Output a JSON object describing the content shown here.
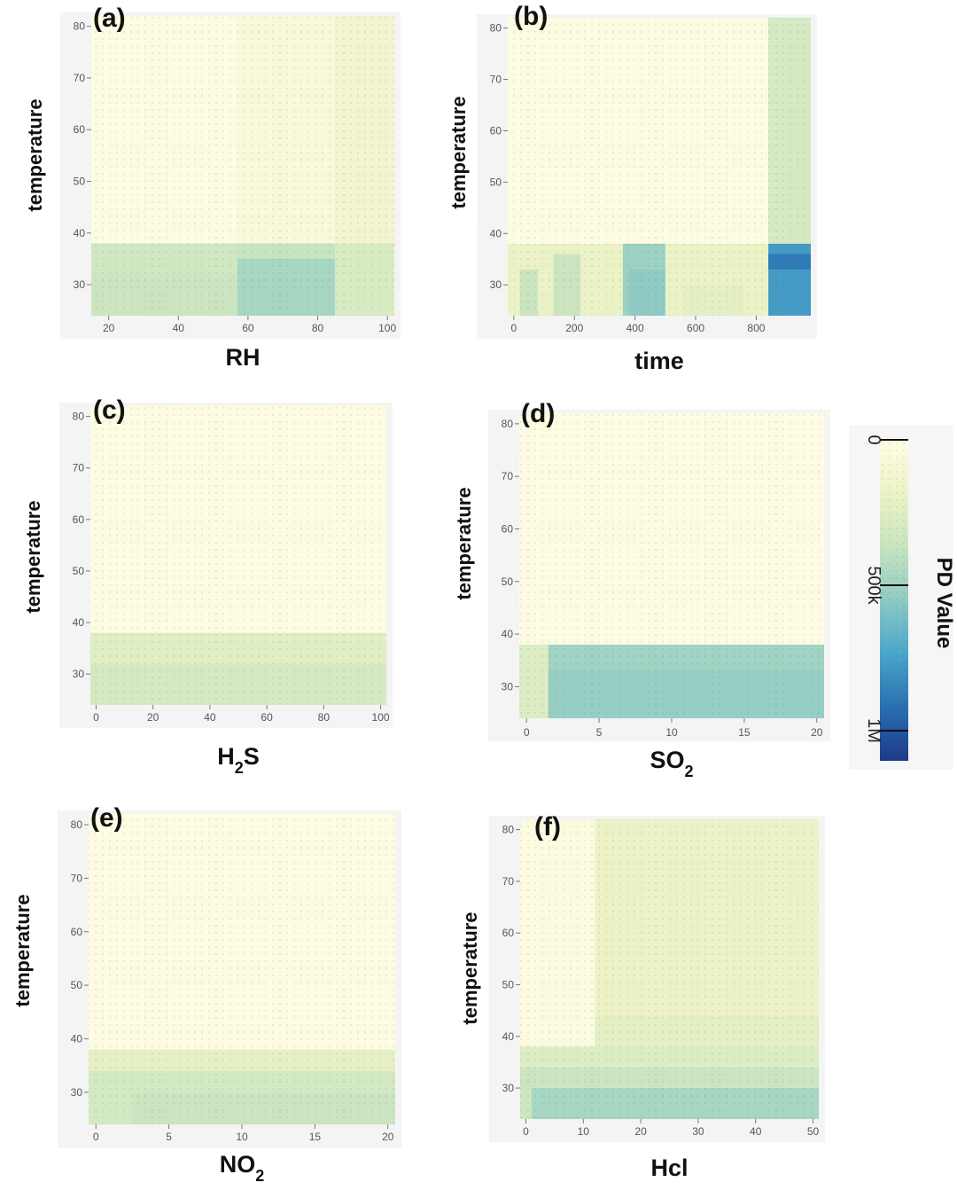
{
  "chart_data": [
    {
      "type": "heatmap",
      "panel_label": "(a)",
      "xlabel": "RH",
      "ylabel": "temperature",
      "xlim": [
        15,
        102
      ],
      "ylim": [
        24,
        82
      ],
      "xticks": [
        20,
        40,
        60,
        80,
        100
      ],
      "xtick_labels": [
        "20",
        "40",
        "60",
        "80",
        "100"
      ],
      "yticks": [
        30,
        40,
        50,
        60,
        70,
        80
      ],
      "ytick_labels": [
        "30",
        "40",
        "50",
        "60",
        "70",
        "80"
      ],
      "cells": [
        {
          "x0": 15,
          "x1": 57,
          "y0": 38,
          "y1": 82,
          "value": 15000
        },
        {
          "x0": 57,
          "x1": 85,
          "y0": 38,
          "y1": 82,
          "value": 70000
        },
        {
          "x0": 85,
          "x1": 102,
          "y0": 38,
          "y1": 82,
          "value": 130000
        },
        {
          "x0": 15,
          "x1": 57,
          "y0": 32,
          "y1": 38,
          "value": 300000
        },
        {
          "x0": 15,
          "x1": 57,
          "y0": 24,
          "y1": 32,
          "value": 330000
        },
        {
          "x0": 57,
          "x1": 85,
          "y0": 35,
          "y1": 38,
          "value": 340000
        },
        {
          "x0": 57,
          "x1": 85,
          "y0": 24,
          "y1": 35,
          "value": 430000
        },
        {
          "x0": 85,
          "x1": 102,
          "y0": 24,
          "y1": 38,
          "value": 260000
        }
      ]
    },
    {
      "type": "heatmap",
      "panel_label": "(b)",
      "xlabel": "time",
      "ylabel": "temperature",
      "xlim": [
        -20,
        980
      ],
      "ylim": [
        24,
        82
      ],
      "xticks": [
        0,
        200,
        400,
        600,
        800
      ],
      "xtick_labels": [
        "0",
        "200",
        "400",
        "600",
        "800"
      ],
      "yticks": [
        30,
        40,
        50,
        60,
        70,
        80
      ],
      "ytick_labels": [
        "30",
        "40",
        "50",
        "60",
        "70",
        "80"
      ],
      "cells": [
        {
          "x0": -20,
          "x1": 840,
          "y0": 38,
          "y1": 82,
          "value": 20000
        },
        {
          "x0": 840,
          "x1": 980,
          "y0": 38,
          "y1": 82,
          "value": 280000
        },
        {
          "x0": -20,
          "x1": 840,
          "y0": 24,
          "y1": 38,
          "value": 180000
        },
        {
          "x0": 20,
          "x1": 80,
          "y0": 24,
          "y1": 33,
          "value": 330000
        },
        {
          "x0": 130,
          "x1": 220,
          "y0": 24,
          "y1": 36,
          "value": 330000
        },
        {
          "x0": 360,
          "x1": 500,
          "y0": 24,
          "y1": 38,
          "value": 460000
        },
        {
          "x0": 380,
          "x1": 500,
          "y0": 24,
          "y1": 33,
          "value": 500000
        },
        {
          "x0": 560,
          "x1": 760,
          "y0": 24,
          "y1": 30,
          "value": 210000
        },
        {
          "x0": 840,
          "x1": 980,
          "y0": 24,
          "y1": 38,
          "value": 700000
        },
        {
          "x0": 840,
          "x1": 980,
          "y0": 33,
          "y1": 36,
          "value": 800000
        }
      ]
    },
    {
      "type": "heatmap",
      "panel_label": "(c)",
      "xlabel": "H2S",
      "ylabel": "temperature",
      "xlim": [
        -2,
        102
      ],
      "ylim": [
        24,
        82
      ],
      "xticks": [
        0,
        20,
        40,
        60,
        80,
        100
      ],
      "xtick_labels": [
        "0",
        "20",
        "40",
        "60",
        "80",
        "100"
      ],
      "yticks": [
        30,
        40,
        50,
        60,
        70,
        80
      ],
      "ytick_labels": [
        "30",
        "40",
        "50",
        "60",
        "70",
        "80"
      ],
      "cells": [
        {
          "x0": -2,
          "x1": 102,
          "y0": 38,
          "y1": 82,
          "value": 20000
        },
        {
          "x0": -2,
          "x1": 102,
          "y0": 32,
          "y1": 38,
          "value": 230000
        },
        {
          "x0": -2,
          "x1": 102,
          "y0": 24,
          "y1": 32,
          "value": 280000
        }
      ]
    },
    {
      "type": "heatmap",
      "panel_label": "(d)",
      "xlabel": "SO2",
      "ylabel": "temperature",
      "xlim": [
        -0.5,
        20.5
      ],
      "ylim": [
        24,
        82
      ],
      "xticks": [
        0,
        5,
        10,
        15,
        20
      ],
      "xtick_labels": [
        "0",
        "5",
        "10",
        "15",
        "20"
      ],
      "yticks": [
        30,
        40,
        50,
        60,
        70,
        80
      ],
      "ytick_labels": [
        "30",
        "40",
        "50",
        "60",
        "70",
        "80"
      ],
      "cells": [
        {
          "x0": -0.5,
          "x1": 20.5,
          "y0": 38,
          "y1": 82,
          "value": 20000
        },
        {
          "x0": -0.5,
          "x1": 1.5,
          "y0": 24,
          "y1": 38,
          "value": 250000
        },
        {
          "x0": 1.5,
          "x1": 20.5,
          "y0": 24,
          "y1": 38,
          "value": 450000
        },
        {
          "x0": 1.5,
          "x1": 20.5,
          "y0": 24,
          "y1": 33,
          "value": 480000
        }
      ]
    },
    {
      "type": "heatmap",
      "panel_label": "(e)",
      "xlabel": "NO2",
      "ylabel": "temperature",
      "xlim": [
        -0.5,
        20.5
      ],
      "ylim": [
        24,
        82
      ],
      "xticks": [
        0,
        5,
        10,
        15,
        20
      ],
      "xtick_labels": [
        "0",
        "5",
        "10",
        "15",
        "20"
      ],
      "yticks": [
        30,
        40,
        50,
        60,
        70,
        80
      ],
      "ytick_labels": [
        "30",
        "40",
        "50",
        "60",
        "70",
        "80"
      ],
      "cells": [
        {
          "x0": -0.5,
          "x1": 20.5,
          "y0": 38,
          "y1": 82,
          "value": 20000
        },
        {
          "x0": -0.5,
          "x1": 20.5,
          "y0": 34,
          "y1": 38,
          "value": 200000
        },
        {
          "x0": -0.5,
          "x1": 20.5,
          "y0": 24,
          "y1": 34,
          "value": 290000
        },
        {
          "x0": 2.5,
          "x1": 20.5,
          "y0": 24,
          "y1": 30,
          "value": 330000
        }
      ]
    },
    {
      "type": "heatmap",
      "panel_label": "(f)",
      "xlabel": "Hcl",
      "ylabel": "temperature",
      "xlim": [
        -1,
        51
      ],
      "ylim": [
        24,
        82
      ],
      "xticks": [
        0,
        10,
        20,
        30,
        40,
        50
      ],
      "xtick_labels": [
        "0",
        "10",
        "20",
        "30",
        "40",
        "50"
      ],
      "yticks": [
        30,
        40,
        50,
        60,
        70,
        80
      ],
      "ytick_labels": [
        "30",
        "40",
        "50",
        "60",
        "70",
        "80"
      ],
      "cells": [
        {
          "x0": -1,
          "x1": 12,
          "y0": 38,
          "y1": 82,
          "value": 30000
        },
        {
          "x0": 12,
          "x1": 51,
          "y0": 44,
          "y1": 82,
          "value": 170000
        },
        {
          "x0": 12,
          "x1": 51,
          "y0": 38,
          "y1": 44,
          "value": 210000
        },
        {
          "x0": -1,
          "x1": 51,
          "y0": 34,
          "y1": 38,
          "value": 250000
        },
        {
          "x0": -1,
          "x1": 51,
          "y0": 30,
          "y1": 34,
          "value": 330000
        },
        {
          "x0": 1,
          "x1": 51,
          "y0": 24,
          "y1": 30,
          "value": 430000
        },
        {
          "x0": -1,
          "x1": 1,
          "y0": 24,
          "y1": 30,
          "value": 320000
        }
      ]
    }
  ],
  "colorbar": {
    "title": "PD Value",
    "ticks": [
      0,
      500000,
      1000000
    ],
    "tick_labels": [
      "0",
      "500k",
      "1M"
    ],
    "range": [
      0,
      1000000
    ],
    "colors": [
      "#fffde6",
      "#eef3c6",
      "#c9e5c0",
      "#8fcbc4",
      "#4aa6ca",
      "#2a6fb2",
      "#1c3a8a"
    ]
  }
}
